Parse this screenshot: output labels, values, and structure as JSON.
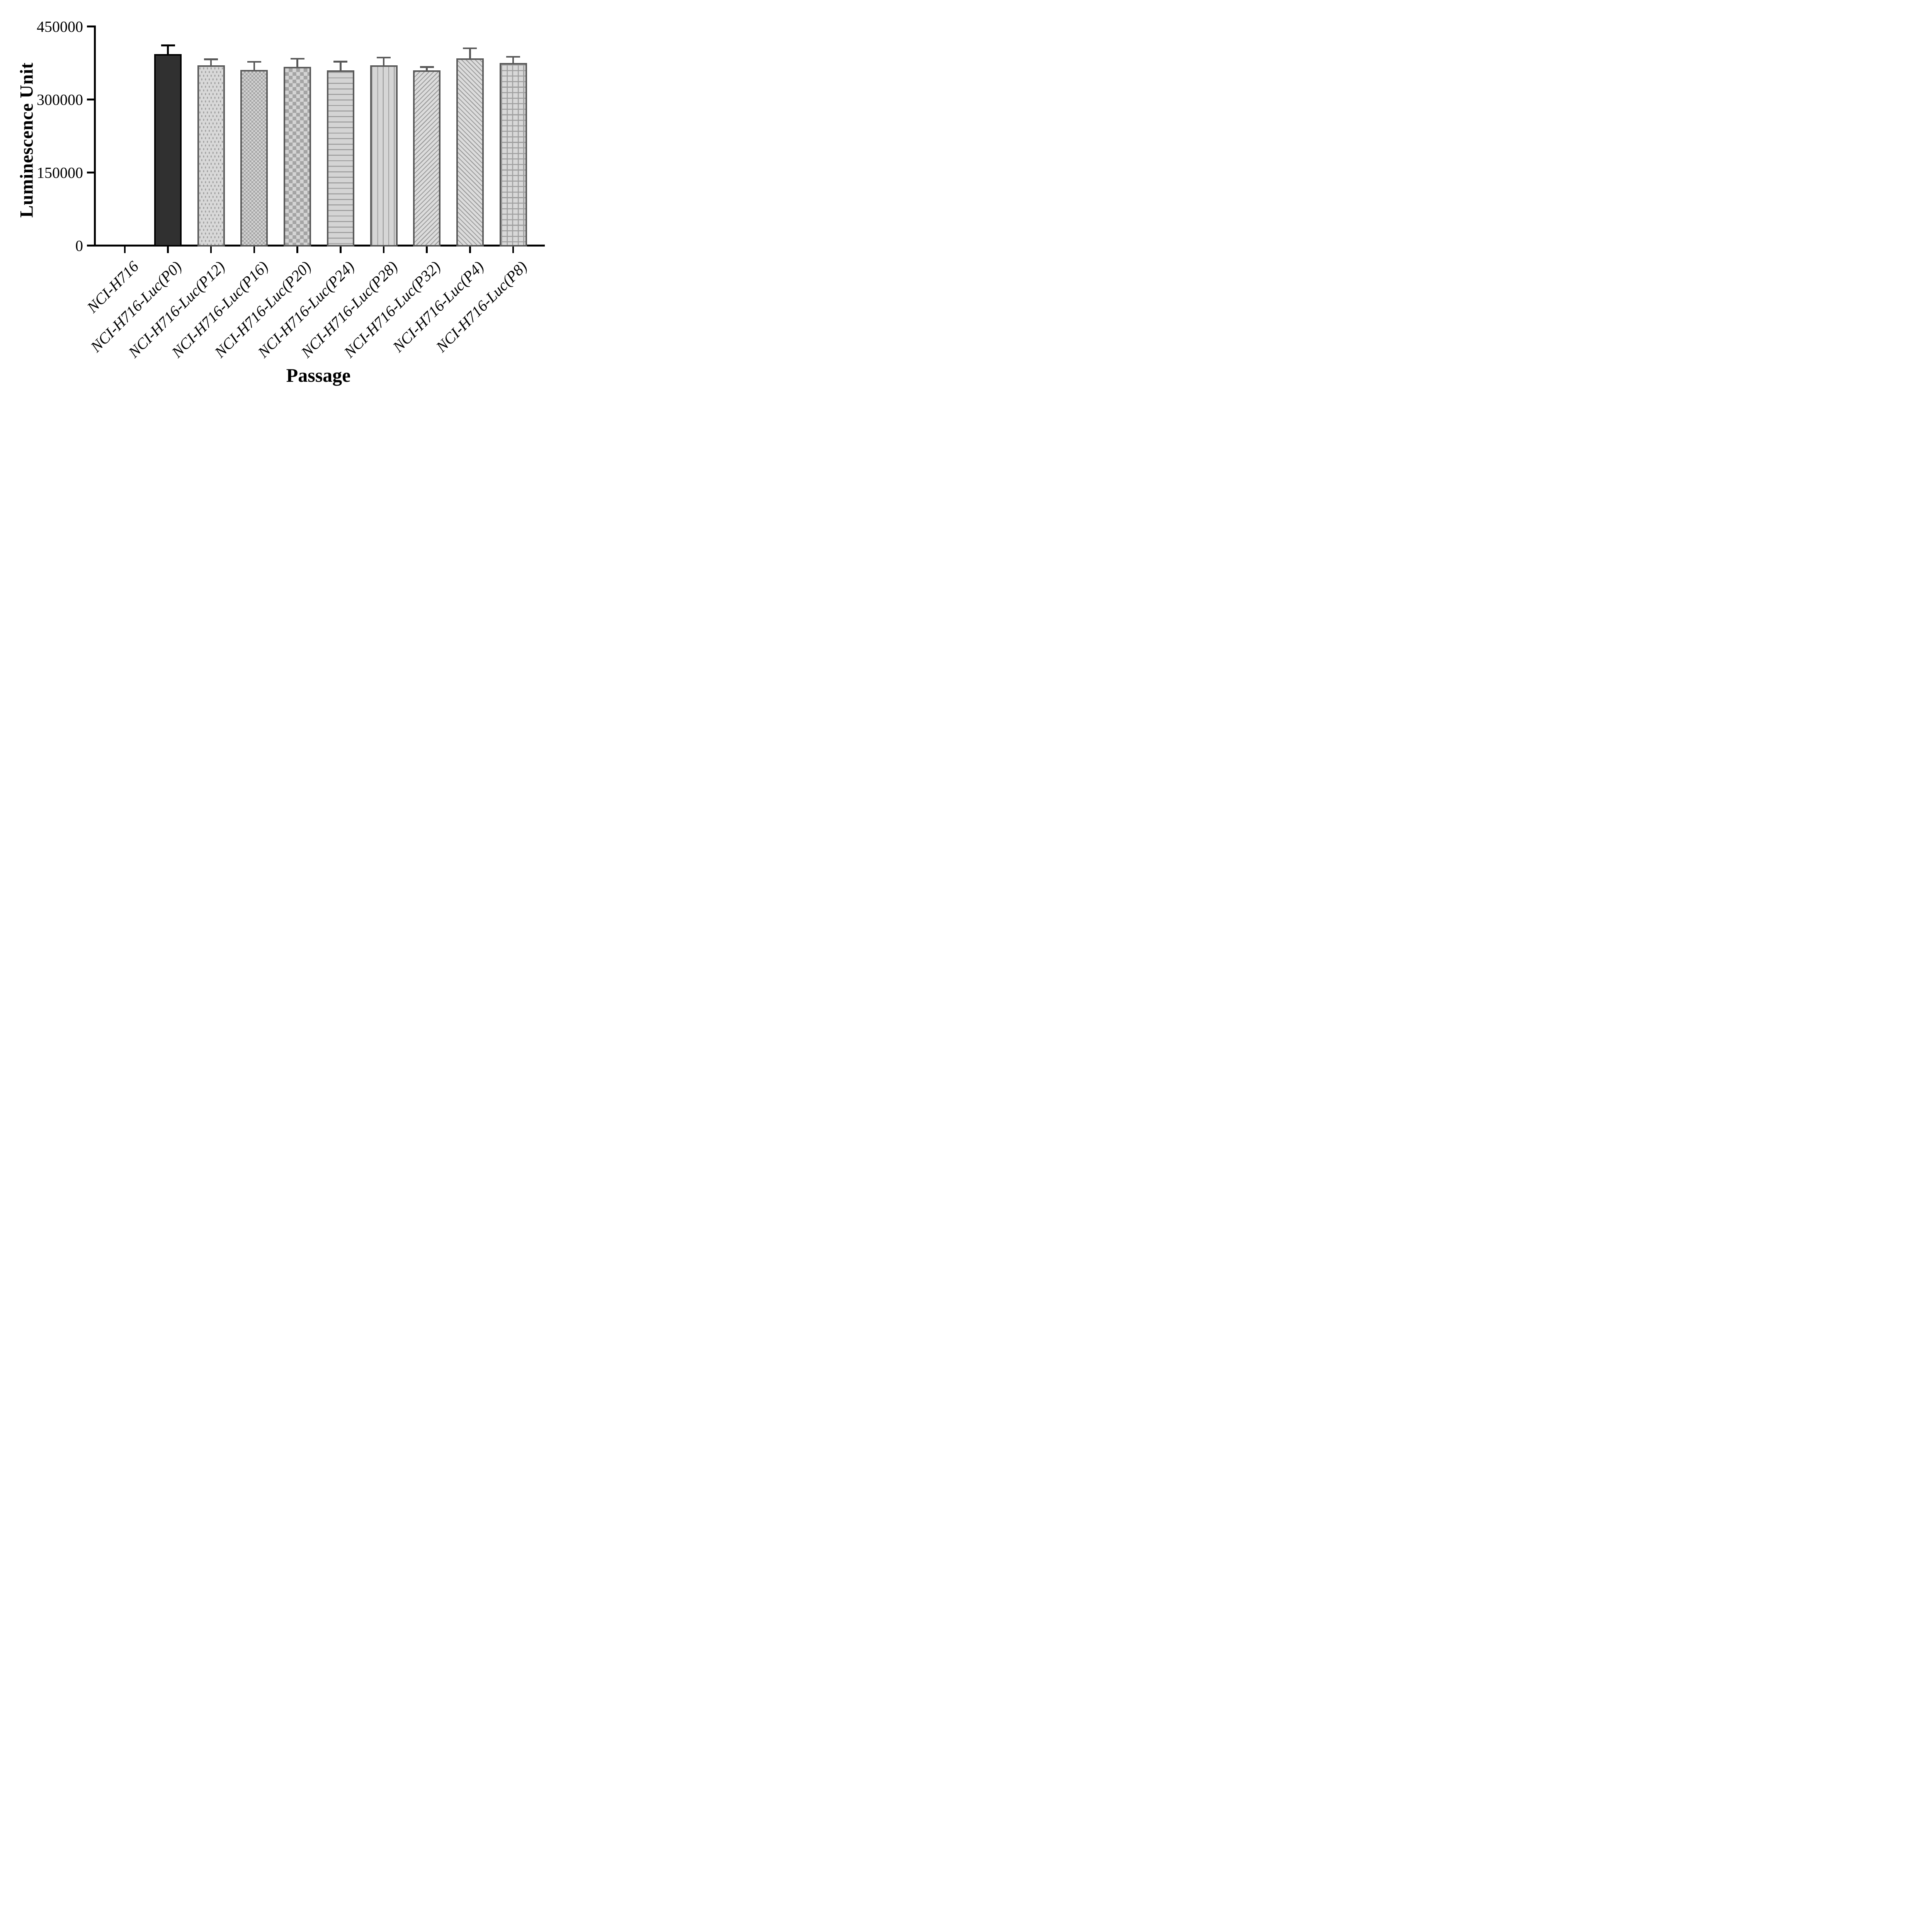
{
  "figure": {
    "kind": "bar chart",
    "background": "#ffffff"
  },
  "y_axis": {
    "title": "Luminescence Unit",
    "tick_values": [
      0,
      150000,
      300000,
      450000
    ],
    "tick_labels": [
      "0",
      "150000",
      "300000",
      "450000"
    ],
    "min": 0,
    "max": 450000
  },
  "x_axis": {
    "title": "Passage"
  },
  "chart_data": {
    "type": "bar",
    "title": "",
    "xlabel": "Passage",
    "ylabel": "Luminescence Unit",
    "ylim": [
      0,
      450000
    ],
    "grid": false,
    "legend": false,
    "error_bars": "SD, upper side only",
    "categories": [
      "NCI-H716",
      "NCI-H716-Luc(P0)",
      "NCI-H716-Luc(P12)",
      "NCI-H716-Luc(P16)",
      "NCI-H716-Luc(P20)",
      "NCI-H716-Luc(P24)",
      "NCI-H716-Luc(P28)",
      "NCI-H716-Luc(P32)",
      "NCI-H716-Luc(P4)",
      "NCI-H716-Luc(P8)"
    ],
    "values": [
      0,
      393000,
      370000,
      361000,
      367500,
      360000,
      370000,
      360000,
      384500,
      375000
    ],
    "errors": [
      0,
      16500,
      11000,
      14500,
      14500,
      16000,
      14500,
      5000,
      19000,
      11000
    ],
    "patterns": [
      "none",
      "solid-dark",
      "dots",
      "checker-fine",
      "checker-coarse",
      "hlines",
      "vlines",
      "diag-forward",
      "diag-backward",
      "grid"
    ]
  },
  "colors": {
    "axis": "#000000",
    "text": "#000000",
    "bar_border": "#595959",
    "bar_fill_light": "#d6d6d6",
    "pattern_gray": "#9c9c9c",
    "p0_fill": "#303030",
    "p0_border": "#000000",
    "error_bar_default": "#595959",
    "error_bar_p0": "#000000"
  }
}
